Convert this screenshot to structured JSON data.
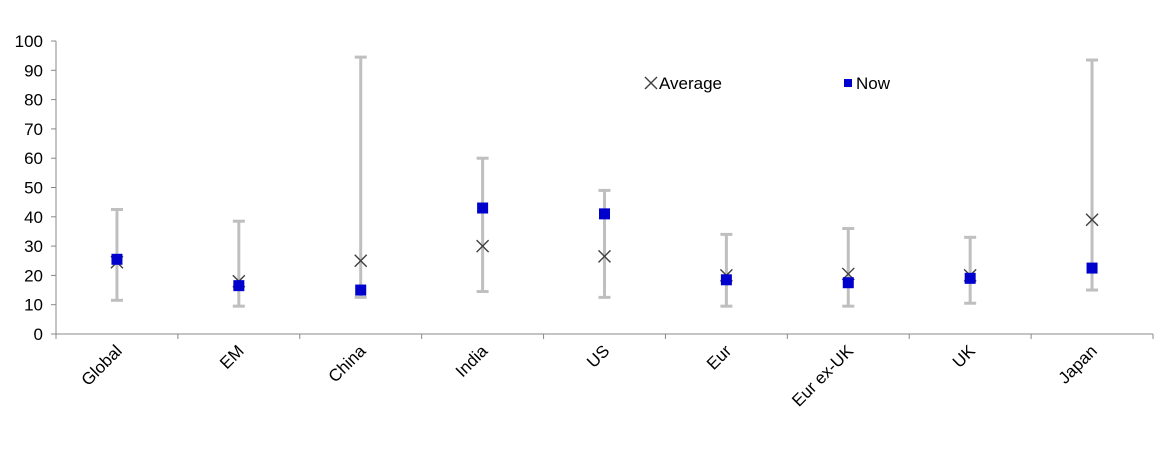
{
  "chart_data": {
    "type": "scatter",
    "title": "",
    "xlabel": "",
    "ylabel": "",
    "ylim": [
      0,
      100
    ],
    "yticks": [
      0,
      10,
      20,
      30,
      40,
      50,
      60,
      70,
      80,
      90,
      100
    ],
    "grid": false,
    "legend_position": "top-right",
    "categories": [
      "Global",
      "EM",
      "China",
      "India",
      "US",
      "Eur",
      "Eur ex-UK",
      "UK",
      "Japan"
    ],
    "range": {
      "min": [
        11.5,
        9.5,
        12.5,
        14.5,
        12.5,
        9.5,
        9.5,
        10.5,
        15
      ],
      "max": [
        42.5,
        38.5,
        94.5,
        60,
        49,
        34,
        36,
        33,
        93.5
      ],
      "color": "#bfbfbf"
    },
    "series": [
      {
        "name": "Average",
        "marker": "x",
        "color": "#404040",
        "values": [
          24.5,
          18,
          25,
          30,
          26.5,
          20,
          20.5,
          20,
          39
        ]
      },
      {
        "name": "Now",
        "marker": "square",
        "color": "#0000cc",
        "values": [
          25.5,
          16.5,
          15,
          43,
          41,
          18.5,
          17.5,
          19,
          22.5
        ]
      }
    ]
  }
}
